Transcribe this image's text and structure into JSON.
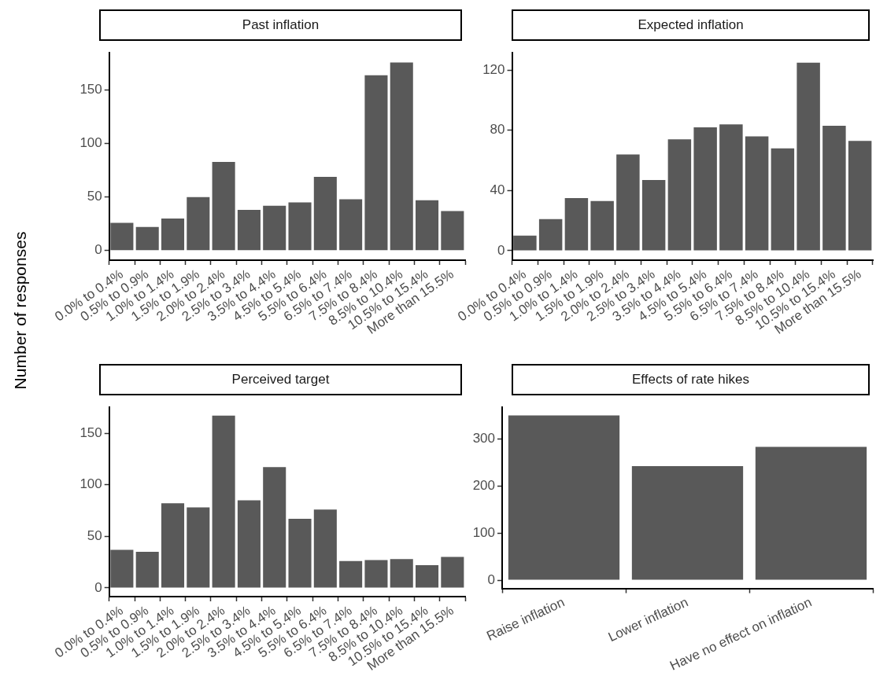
{
  "chart_data": [
    {
      "type": "bar",
      "title": "Past inflation",
      "ylabel": "Number of responses",
      "categories": [
        "0.0% to 0.4%",
        "0.5% to 0.9%",
        "1.0% to 1.4%",
        "1.5% to 1.9%",
        "2.0% to 2.4%",
        "2.5% to 3.4%",
        "3.5% to 4.4%",
        "4.5% to 5.4%",
        "5.5% to 6.4%",
        "6.5% to 7.4%",
        "7.5% to 8.4%",
        "8.5% to 10.4%",
        "10.5% to 15.4%",
        "More than 15.5%"
      ],
      "values": [
        26,
        22,
        30,
        50,
        83,
        38,
        42,
        45,
        69,
        48,
        164,
        176,
        47,
        37
      ],
      "color": "#595959",
      "ylim": [
        -9,
        185
      ],
      "yticks": [
        0,
        50,
        100,
        150
      ],
      "grid": false,
      "legend": false
    },
    {
      "type": "bar",
      "title": "Expected inflation",
      "categories": [
        "0.0% to 0.4%",
        "0.5% to 0.9%",
        "1.0% to 1.4%",
        "1.5% to 1.9%",
        "2.0% to 2.4%",
        "2.5% to 3.4%",
        "3.5% to 4.4%",
        "4.5% to 5.4%",
        "5.5% to 6.4%",
        "6.5% to 7.4%",
        "7.5% to 8.4%",
        "8.5% to 10.4%",
        "10.5% to 15.4%",
        "More than 15.5%"
      ],
      "values": [
        10,
        21,
        35,
        33,
        64,
        47,
        74,
        82,
        84,
        76,
        68,
        125,
        83,
        73
      ],
      "color": "#595959",
      "ylim": [
        -6.3,
        131.5
      ],
      "yticks": [
        0,
        40,
        80,
        120
      ],
      "grid": false,
      "legend": false
    },
    {
      "type": "bar",
      "title": "Perceived target",
      "categories": [
        "0.0% to 0.4%",
        "0.5% to 0.9%",
        "1.0% to 1.4%",
        "1.5% to 1.9%",
        "2.0% to 2.4%",
        "2.5% to 3.4%",
        "3.5% to 4.4%",
        "4.5% to 5.4%",
        "5.5% to 6.4%",
        "6.5% to 7.4%",
        "7.5% to 8.4%",
        "8.5% to 10.4%",
        "10.5% to 15.4%",
        "More than 15.5%"
      ],
      "values": [
        37,
        35,
        82,
        78,
        167,
        85,
        117,
        67,
        76,
        26,
        27,
        28,
        22,
        30
      ],
      "color": "#595959",
      "ylim": [
        -8.4,
        175
      ],
      "yticks": [
        0,
        50,
        100,
        150
      ],
      "grid": false,
      "legend": false
    },
    {
      "type": "bar",
      "title": "Effects of rate hikes",
      "categories": [
        "Raise inflation",
        "Lower inflation",
        "Have no effect on inflation"
      ],
      "values": [
        350,
        242,
        283
      ],
      "color": "#595959",
      "ylim": [
        -17.5,
        367
      ],
      "yticks": [
        0,
        100,
        200,
        300
      ],
      "grid": false,
      "legend": false
    }
  ]
}
